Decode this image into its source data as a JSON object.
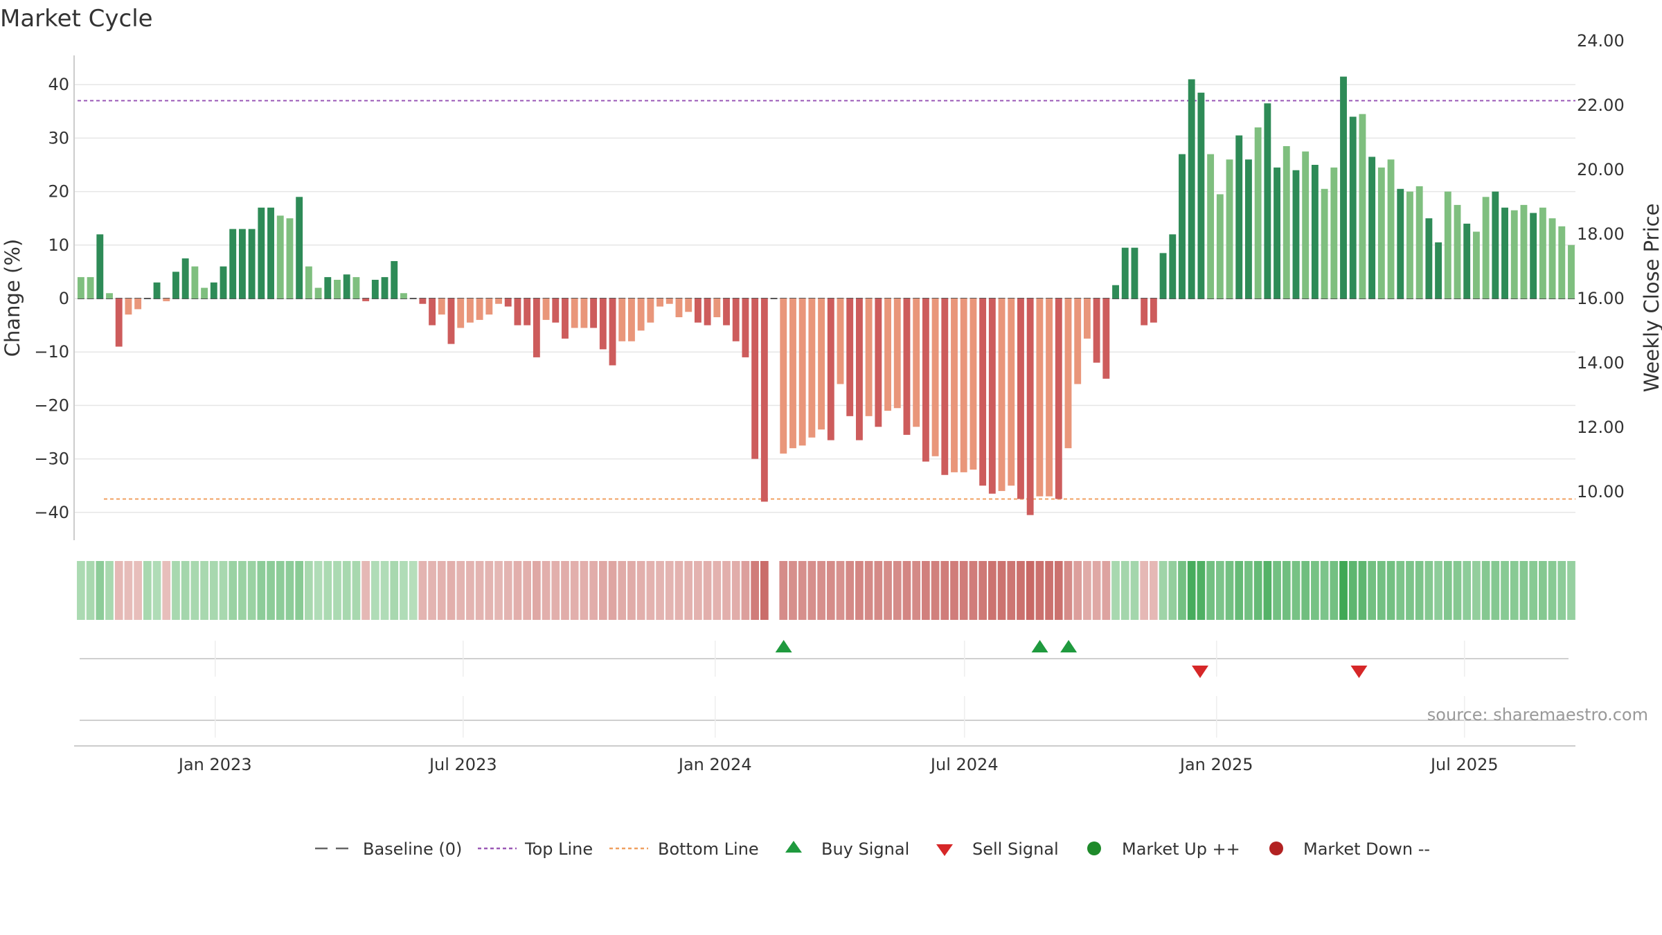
{
  "chart_data": {
    "type": "bar",
    "title": "Market Cycle",
    "ylabel": "Change (%)",
    "ylabel_right": "Weekly Close Price",
    "ylim": [
      -45,
      45
    ],
    "y2lim": [
      9.1,
      24.9
    ],
    "yticks": [
      40,
      30,
      20,
      10,
      0,
      -10,
      -20,
      -30,
      -40
    ],
    "ytick_labels": [
      "40",
      "30",
      "20",
      "10",
      "0",
      "−10",
      "−20",
      "−30",
      "−40"
    ],
    "y2ticks": [
      24,
      22,
      20,
      18,
      16,
      14,
      12,
      10
    ],
    "y2tick_labels": [
      "24.00",
      "22.00",
      "20.00",
      "18.00",
      "16.00",
      "14.00",
      "12.00",
      "10.00"
    ],
    "xlim": [
      "2022-09-20",
      "2025-09-20"
    ],
    "xticks": [
      "2023-01-01",
      "2023-07-01",
      "2024-01-01",
      "2024-07-01",
      "2025-01-01",
      "2025-07-01"
    ],
    "xtick_labels": [
      "Jan 2023",
      "Jul 2023",
      "Jan 2024",
      "Jul 2024",
      "Jan 2025",
      "Jul 2025"
    ],
    "top_line": 37,
    "bottom_line": -37.5,
    "start_week": "2022-09-25",
    "values": [
      4,
      4,
      12,
      1,
      -9,
      -3,
      -2,
      0,
      3,
      -0.5,
      5,
      7.5,
      6,
      2,
      3,
      6,
      13,
      13,
      13,
      17,
      17,
      15.5,
      15,
      19,
      6,
      2,
      4,
      3.5,
      4.5,
      4,
      -0.5,
      3.5,
      4,
      7,
      1,
      0,
      -1,
      -5,
      -3,
      -8.5,
      -5.5,
      -4.5,
      -4,
      -3,
      -1,
      -1.5,
      -5,
      -5,
      -11,
      -4,
      -4.5,
      -7.5,
      -5.5,
      -5.5,
      -5.5,
      -9.5,
      -12.5,
      -8,
      -8,
      -6,
      -4.5,
      -1.5,
      -1,
      -3.5,
      -2.5,
      -4.5,
      -5,
      -3.5,
      -5,
      -8,
      -11,
      -30,
      -38,
      0,
      -29,
      -28,
      -27.5,
      -26,
      -24.5,
      -26.5,
      -16,
      -22,
      -26.5,
      -22,
      -24,
      -21,
      -20.5,
      -25.5,
      -24,
      -30.5,
      -29.5,
      -33,
      -32.5,
      -32.5,
      -32,
      -35,
      -36.5,
      -36,
      -35,
      -37.5,
      -40.5,
      -37,
      -37,
      -37.5,
      -28,
      -16,
      -7.5,
      -12,
      -15,
      2.5,
      9.5,
      9.5,
      -5,
      -4.5,
      8.5,
      12,
      27,
      41,
      38.5,
      27,
      19.5,
      26,
      30.5,
      26,
      32,
      36.5,
      24.5,
      28.5,
      24,
      27.5,
      25,
      20.5,
      24.5,
      41.5,
      34,
      34.5,
      26.5,
      24.5,
      26,
      20.5,
      20,
      21,
      15,
      10.5,
      20,
      17.5,
      14,
      12.5,
      19,
      20,
      17,
      16.5,
      17.5,
      16,
      17,
      15,
      13.5,
      10
    ],
    "shade": [
      0,
      1,
      2,
      0,
      2,
      0,
      0,
      0,
      2,
      0,
      2,
      2,
      0,
      0,
      2,
      2,
      2,
      2,
      2,
      2,
      2,
      0,
      0,
      2,
      0,
      0,
      2,
      0,
      2,
      0,
      2,
      2,
      2,
      2,
      0,
      0,
      2,
      2,
      0,
      2,
      0,
      0,
      0,
      0,
      0,
      2,
      2,
      2,
      2,
      0,
      2,
      2,
      0,
      0,
      2,
      2,
      2,
      0,
      0,
      0,
      0,
      0,
      0,
      0,
      0,
      2,
      2,
      0,
      2,
      2,
      2,
      2,
      2,
      0,
      0,
      0,
      0,
      0,
      0,
      2,
      0,
      2,
      2,
      0,
      2,
      0,
      0,
      2,
      0,
      2,
      0,
      2,
      0,
      0,
      0,
      2,
      2,
      0,
      0,
      2,
      2,
      0,
      0,
      2,
      0,
      0,
      0,
      2,
      2,
      2,
      2,
      2,
      2,
      2,
      2,
      2,
      2,
      2,
      2,
      0,
      0,
      0,
      2,
      2,
      0,
      2,
      2,
      0,
      2,
      0,
      2,
      0,
      0,
      2,
      2,
      0,
      2,
      0,
      0,
      2,
      0,
      0,
      2,
      2,
      0,
      0,
      2,
      0,
      0,
      2,
      2,
      0,
      0,
      2,
      0,
      0,
      0,
      0,
      0
    ],
    "heatmap_levels": [
      0.28,
      0.3,
      0.45,
      0.3,
      0.25,
      0.22,
      0.2,
      0.3,
      0.25,
      0.2,
      0.3,
      0.32,
      0.3,
      0.3,
      0.3,
      0.3,
      0.38,
      0.38,
      0.38,
      0.45,
      0.45,
      0.45,
      0.45,
      0.48,
      0.3,
      0.25,
      0.28,
      0.28,
      0.3,
      0.3,
      0.25,
      0.25,
      0.25,
      0.3,
      0.25,
      0.22,
      0.28,
      0.28,
      0.3,
      0.32,
      0.28,
      0.28,
      0.28,
      0.28,
      0.26,
      0.28,
      0.32,
      0.32,
      0.38,
      0.32,
      0.32,
      0.34,
      0.32,
      0.32,
      0.34,
      0.38,
      0.4,
      0.35,
      0.35,
      0.32,
      0.3,
      0.28,
      0.28,
      0.3,
      0.3,
      0.3,
      0.32,
      0.3,
      0.32,
      0.34,
      0.45,
      0.72,
      0.85,
      -1,
      0.6,
      0.58,
      0.58,
      0.58,
      0.58,
      0.6,
      0.55,
      0.62,
      0.65,
      0.62,
      0.62,
      0.6,
      0.6,
      0.65,
      0.62,
      0.7,
      0.7,
      0.72,
      0.72,
      0.72,
      0.72,
      0.75,
      0.8,
      0.8,
      0.78,
      0.82,
      0.88,
      0.82,
      0.82,
      0.82,
      0.6,
      0.45,
      0.35,
      0.38,
      0.42,
      0.3,
      0.32,
      0.32,
      0.25,
      0.25,
      0.35,
      0.42,
      0.6,
      0.85,
      0.8,
      0.6,
      0.55,
      0.6,
      0.68,
      0.6,
      0.68,
      0.78,
      0.6,
      0.62,
      0.58,
      0.62,
      0.58,
      0.55,
      0.6,
      0.9,
      0.72,
      0.72,
      0.6,
      0.6,
      0.6,
      0.55,
      0.55,
      0.55,
      0.5,
      0.45,
      0.52,
      0.5,
      0.45,
      0.42,
      0.5,
      0.5,
      0.48,
      0.48,
      0.5,
      0.48,
      0.5,
      0.48,
      0.45,
      0.4
    ],
    "buy_signals": [
      "2024-02-20",
      "2024-08-25",
      "2024-09-15"
    ],
    "sell_signals": [
      "2024-12-20",
      "2025-04-15"
    ],
    "legend_position": "bottom-center",
    "grid": true,
    "legend": [
      {
        "label": "Baseline (0)",
        "marker": "dash-line",
        "color": "#666666"
      },
      {
        "label": "Top Line",
        "marker": "dotted-line",
        "color": "#9b59b6"
      },
      {
        "label": "Bottom Line",
        "marker": "dotted-line",
        "color": "#f0a060"
      },
      {
        "label": "Buy Signal",
        "marker": "triangle-up",
        "color": "#1f9a3e"
      },
      {
        "label": "Sell Signal",
        "marker": "triangle-down",
        "color": "#d62728"
      },
      {
        "label": "Market Up ++",
        "marker": "circle",
        "color": "#1e8a2a"
      },
      {
        "label": "Market Down --",
        "marker": "circle",
        "color": "#b22222"
      }
    ],
    "colors": {
      "up_strong": "#2e8b57",
      "up_light": "#7fbf7f",
      "down_strong": "#cd5c5c",
      "down_light": "#e9967a",
      "top_line": "#9b59b6",
      "bottom_line": "#f0a060",
      "buy": "#1f9a3e",
      "sell": "#d62728"
    }
  },
  "source_text": "source: sharemaestro.com"
}
